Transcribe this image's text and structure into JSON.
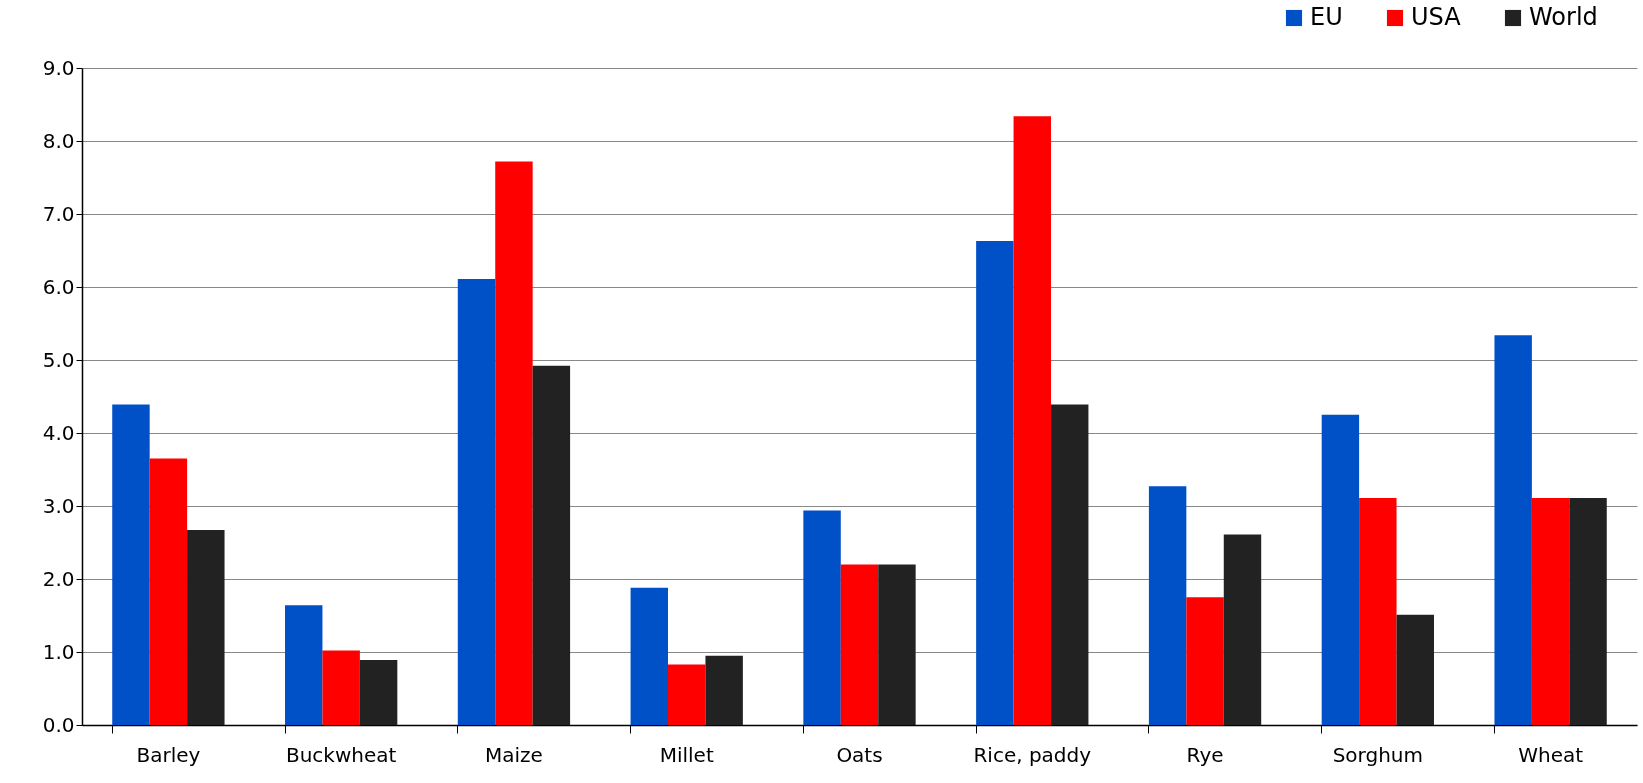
{
  "chart_data": {
    "type": "bar",
    "categories": [
      "Barley",
      "Buckwheat",
      "Maize",
      "Millet",
      "Oats",
      "Rice, paddy",
      "Rye",
      "Sorghum",
      "Wheat"
    ],
    "series": [
      {
        "name": "EU",
        "color": "#0050c8",
        "values": [
          4.39,
          1.64,
          6.11,
          1.88,
          2.94,
          6.63,
          3.27,
          4.25,
          5.34
        ]
      },
      {
        "name": "USA",
        "color": "#ff0000",
        "values": [
          3.65,
          1.02,
          7.72,
          0.83,
          2.2,
          8.34,
          1.75,
          3.11,
          3.11
        ]
      },
      {
        "name": "World",
        "color": "#222222",
        "values": [
          2.67,
          0.89,
          4.92,
          0.95,
          2.2,
          4.39,
          2.61,
          1.51,
          3.11
        ]
      }
    ],
    "ylim": [
      0,
      9
    ],
    "yticks": [
      {
        "value": 0,
        "label": "0.0"
      },
      {
        "value": 1,
        "label": "1.0"
      },
      {
        "value": 2,
        "label": "2.0"
      },
      {
        "value": 3,
        "label": "3.0"
      },
      {
        "value": 4,
        "label": "4.0"
      },
      {
        "value": 5,
        "label": "5.0"
      },
      {
        "value": 6,
        "label": "6.0"
      },
      {
        "value": 7,
        "label": "7.0"
      },
      {
        "value": 8,
        "label": "8.0"
      },
      {
        "value": 9,
        "label": "9.0"
      }
    ],
    "grid": "y",
    "legend": "top right"
  }
}
